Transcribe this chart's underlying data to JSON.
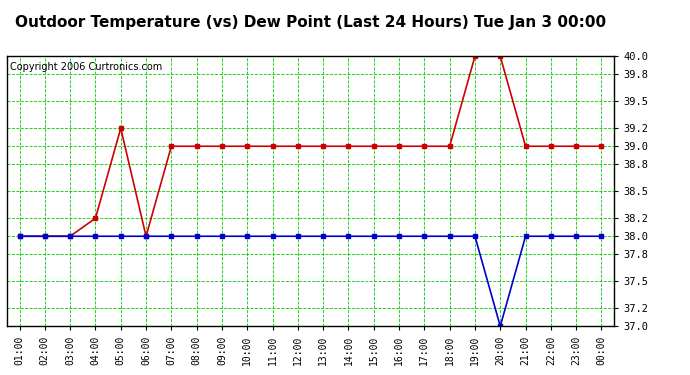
{
  "title": "Outdoor Temperature (vs) Dew Point (Last 24 Hours) Tue Jan 3 00:00",
  "copyright": "Copyright 2006 Curtronics.com",
  "x_labels": [
    "01:00",
    "02:00",
    "03:00",
    "04:00",
    "05:00",
    "06:00",
    "07:00",
    "08:00",
    "09:00",
    "10:00",
    "11:00",
    "12:00",
    "13:00",
    "14:00",
    "15:00",
    "16:00",
    "17:00",
    "18:00",
    "19:00",
    "20:00",
    "21:00",
    "22:00",
    "23:00",
    "00:00"
  ],
  "x_values": [
    1,
    2,
    3,
    4,
    5,
    6,
    7,
    8,
    9,
    10,
    11,
    12,
    13,
    14,
    15,
    16,
    17,
    18,
    19,
    20,
    21,
    22,
    23,
    24
  ],
  "temp_values": [
    38.0,
    38.0,
    38.0,
    38.2,
    39.2,
    38.0,
    39.0,
    39.0,
    39.0,
    39.0,
    39.0,
    39.0,
    39.0,
    39.0,
    39.0,
    39.0,
    39.0,
    39.0,
    40.0,
    40.0,
    39.0,
    39.0,
    39.0,
    39.0
  ],
  "dew_values": [
    38.0,
    38.0,
    38.0,
    38.0,
    38.0,
    38.0,
    38.0,
    38.0,
    38.0,
    38.0,
    38.0,
    38.0,
    38.0,
    38.0,
    38.0,
    38.0,
    38.0,
    38.0,
    38.0,
    37.0,
    38.0,
    38.0,
    38.0,
    38.0
  ],
  "temp_color": "#cc0000",
  "dew_color": "#0000cc",
  "bg_color": "#ffffff",
  "plot_bg_color": "#ffffff",
  "grid_color": "#00cc00",
  "ylim_min": 37.0,
  "ylim_max": 40.0,
  "yticks": [
    37.0,
    37.2,
    37.5,
    37.8,
    38.0,
    38.2,
    38.5,
    38.8,
    39.0,
    39.2,
    39.5,
    39.8,
    40.0
  ],
  "title_fontsize": 11,
  "copyright_fontsize": 7,
  "marker": "s",
  "markersize": 3,
  "linewidth": 1.2
}
